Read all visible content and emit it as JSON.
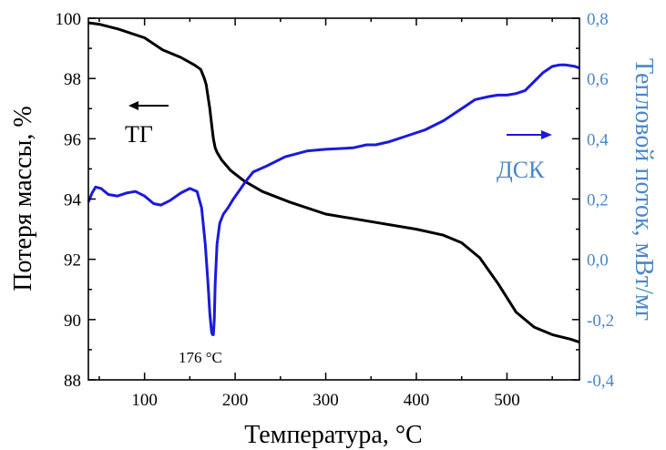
{
  "chart_data": {
    "type": "line",
    "xlabel": "Температура, °С",
    "ylabel_left": "Потеря массы, %",
    "ylabel_right": "Тепловой поток, мВт/мг",
    "xlim": [
      38,
      580
    ],
    "ylim_left": [
      88,
      100
    ],
    "ylim_right": [
      -0.4,
      0.8
    ],
    "x_ticks": [
      100,
      200,
      300,
      400,
      500
    ],
    "y_left_ticks": [
      "88",
      "90",
      "92",
      "94",
      "96",
      "98",
      "100"
    ],
    "y_right_ticks": [
      "-0,4",
      "-0,2",
      "0,0",
      "0,2",
      "0,4",
      "0,6",
      "0,8"
    ],
    "grid": false,
    "colors": {
      "tg": "#000000",
      "dsc": "#1a1adc",
      "right_axis": "#4a86c8"
    },
    "annotations": {
      "tg_label": "ТГ",
      "dsc_label": "ДСК",
      "peak_label": "176 °С",
      "tg_arrow": "left",
      "dsc_arrow": "right"
    },
    "series": [
      {
        "name": "ТГ",
        "axis": "left",
        "x": [
          38,
          50,
          70,
          100,
          120,
          140,
          155,
          162,
          166,
          168,
          170,
          172,
          174,
          176,
          178,
          180,
          185,
          195,
          210,
          230,
          260,
          300,
          350,
          400,
          430,
          450,
          470,
          490,
          510,
          530,
          550,
          570,
          580
        ],
        "y": [
          99.85,
          99.8,
          99.65,
          99.35,
          98.95,
          98.7,
          98.45,
          98.3,
          98.0,
          97.8,
          97.4,
          97.0,
          96.5,
          96.0,
          95.7,
          95.55,
          95.3,
          94.95,
          94.6,
          94.25,
          93.9,
          93.5,
          93.25,
          93.0,
          92.8,
          92.55,
          92.05,
          91.2,
          90.25,
          89.75,
          89.5,
          89.35,
          89.25
        ]
      },
      {
        "name": "ДСК",
        "axis": "right",
        "x": [
          38,
          42,
          46,
          52,
          60,
          70,
          80,
          90,
          100,
          110,
          118,
          128,
          140,
          150,
          158,
          163,
          167,
          170,
          172,
          174,
          175,
          176,
          177,
          178,
          180,
          183,
          187,
          192,
          198,
          205,
          212,
          220,
          235,
          255,
          280,
          300,
          330,
          345,
          355,
          370,
          390,
          410,
          430,
          450,
          465,
          480,
          490,
          500,
          510,
          520,
          530,
          540,
          550,
          558,
          565,
          575,
          580
        ],
        "y": [
          0.19,
          0.22,
          0.24,
          0.235,
          0.215,
          0.21,
          0.22,
          0.225,
          0.21,
          0.185,
          0.18,
          0.195,
          0.22,
          0.235,
          0.225,
          0.17,
          0.05,
          -0.08,
          -0.18,
          -0.24,
          -0.25,
          -0.25,
          -0.2,
          -0.08,
          0.05,
          0.12,
          0.15,
          0.17,
          0.2,
          0.23,
          0.26,
          0.29,
          0.31,
          0.34,
          0.36,
          0.365,
          0.37,
          0.38,
          0.38,
          0.39,
          0.41,
          0.43,
          0.46,
          0.5,
          0.53,
          0.54,
          0.545,
          0.545,
          0.55,
          0.56,
          0.59,
          0.62,
          0.64,
          0.645,
          0.645,
          0.64,
          0.635
        ]
      }
    ]
  }
}
